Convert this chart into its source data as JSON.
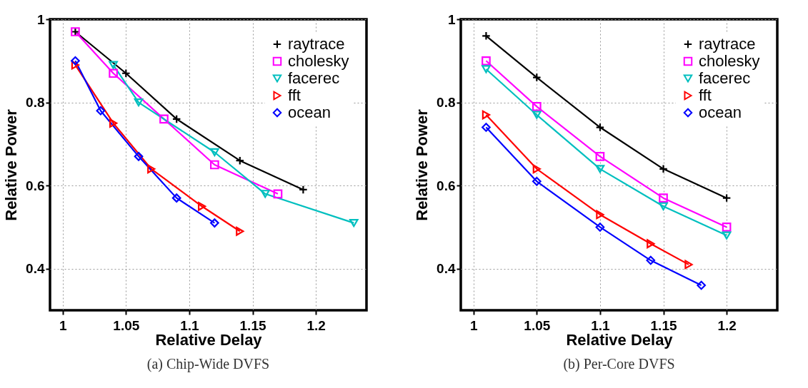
{
  "chart_data": [
    {
      "type": "line",
      "title": "(a) Chip-Wide DVFS",
      "xlabel": "Relative Delay",
      "ylabel": "Relative Power",
      "xlim": [
        0.99,
        1.24
      ],
      "ylim": [
        0.3,
        1
      ],
      "xticks": [
        1,
        1.05,
        1.1,
        1.15,
        1.2
      ],
      "yticks": [
        0.4,
        0.6,
        0.8,
        1
      ],
      "grid": true,
      "legend": "top right",
      "line_style": "solid",
      "series": [
        {
          "name": "raytrace",
          "color": "#000000",
          "marker": "cross",
          "x": [
            1.01,
            1.05,
            1.09,
            1.14,
            1.19
          ],
          "values": [
            0.97,
            0.87,
            0.76,
            0.66,
            0.59
          ]
        },
        {
          "name": "cholesky",
          "color": "#ff00ff",
          "marker": "square",
          "x": [
            1.01,
            1.04,
            1.08,
            1.12,
            1.17
          ],
          "values": [
            0.97,
            0.87,
            0.76,
            0.65,
            0.58
          ]
        },
        {
          "name": "facerec",
          "color": "#00bfbf",
          "marker": "triangle-down",
          "x": [
            1.04,
            1.06,
            1.12,
            1.16,
            1.23
          ],
          "values": [
            0.89,
            0.8,
            0.68,
            0.58,
            0.51
          ]
        },
        {
          "name": "fft",
          "color": "#ff0000",
          "marker": "triangle-right",
          "x": [
            1.01,
            1.04,
            1.07,
            1.11,
            1.14
          ],
          "values": [
            0.89,
            0.75,
            0.64,
            0.55,
            0.49
          ]
        },
        {
          "name": "ocean",
          "color": "#0000ff",
          "marker": "diamond",
          "x": [
            1.01,
            1.03,
            1.06,
            1.09,
            1.12
          ],
          "values": [
            0.9,
            0.78,
            0.67,
            0.57,
            0.51
          ]
        }
      ]
    },
    {
      "type": "line",
      "title": "(b) Per-Core DVFS",
      "xlabel": "Relative Delay",
      "ylabel": "Relative Power",
      "xlim": [
        0.99,
        1.24
      ],
      "ylim": [
        0.3,
        1
      ],
      "xticks": [
        1,
        1.05,
        1.1,
        1.15,
        1.2
      ],
      "yticks": [
        0.4,
        0.6,
        0.8,
        1
      ],
      "grid": true,
      "legend": "top right",
      "line_style": "solid",
      "series": [
        {
          "name": "raytrace",
          "color": "#000000",
          "marker": "cross",
          "x": [
            1.01,
            1.05,
            1.1,
            1.15,
            1.2
          ],
          "values": [
            0.96,
            0.86,
            0.74,
            0.64,
            0.57
          ]
        },
        {
          "name": "cholesky",
          "color": "#ff00ff",
          "marker": "square",
          "x": [
            1.01,
            1.05,
            1.1,
            1.15,
            1.2
          ],
          "values": [
            0.9,
            0.79,
            0.67,
            0.57,
            0.5
          ]
        },
        {
          "name": "facerec",
          "color": "#00bfbf",
          "marker": "triangle-down",
          "x": [
            1.01,
            1.05,
            1.1,
            1.15,
            1.2
          ],
          "values": [
            0.88,
            0.77,
            0.64,
            0.55,
            0.48
          ]
        },
        {
          "name": "fft",
          "color": "#ff0000",
          "marker": "triangle-right",
          "x": [
            1.01,
            1.05,
            1.1,
            1.14,
            1.17
          ],
          "values": [
            0.77,
            0.64,
            0.53,
            0.46,
            0.41
          ]
        },
        {
          "name": "ocean",
          "color": "#0000ff",
          "marker": "diamond",
          "x": [
            1.01,
            1.05,
            1.1,
            1.14,
            1.18
          ],
          "values": [
            0.74,
            0.61,
            0.5,
            0.42,
            0.36
          ]
        }
      ]
    }
  ]
}
